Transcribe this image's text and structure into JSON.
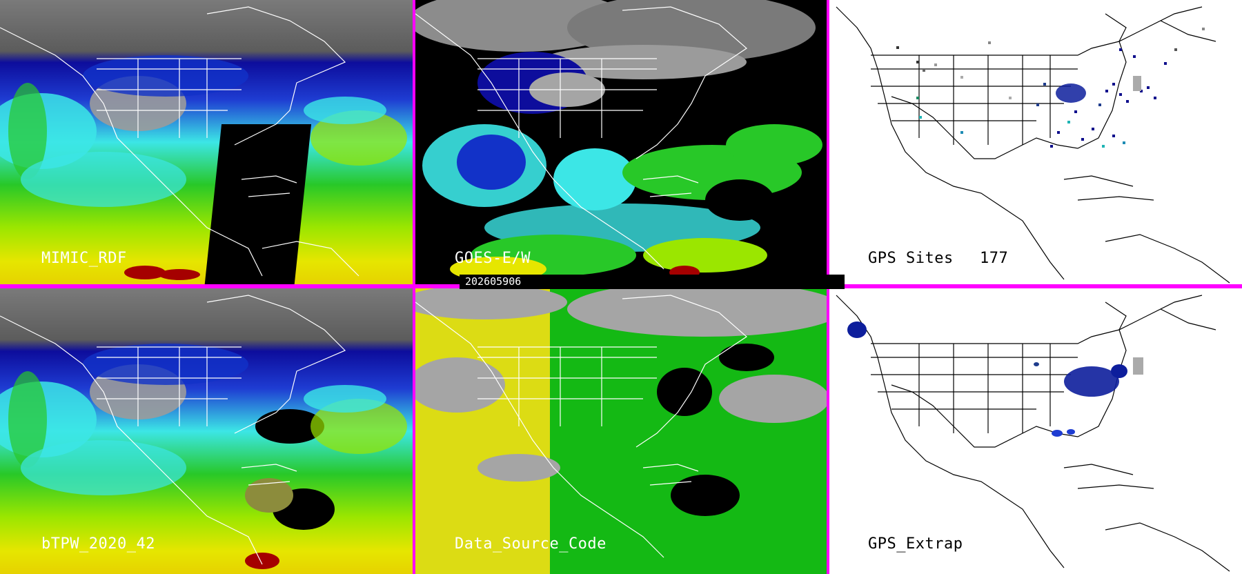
{
  "panels": {
    "mimic": {
      "label": "MIMIC_RDF"
    },
    "goes": {
      "label": "GOES-E/W"
    },
    "gps_sites": {
      "label": "GPS Sites",
      "count": "177"
    },
    "btpw": {
      "label": "bTPW_2020_42"
    },
    "source": {
      "label": "Data_Source_Code"
    },
    "gps_extrap": {
      "label": "GPS_Extrap"
    }
  },
  "timestamp": "202605906",
  "colors": {
    "divider": "#ff00ff",
    "cloud_gray": "#8c8c8c",
    "tpw_navy": "#0a0a8c",
    "tpw_blue": "#1e3cd2",
    "tpw_cyan": "#3ce6e6",
    "tpw_green": "#28c828",
    "tpw_lime": "#9be600",
    "tpw_yellow": "#e6e600",
    "tpw_red": "#a50000",
    "source_yellow": "#dcdc14",
    "source_green": "#14b914",
    "source_gray": "#a5a5a5"
  }
}
